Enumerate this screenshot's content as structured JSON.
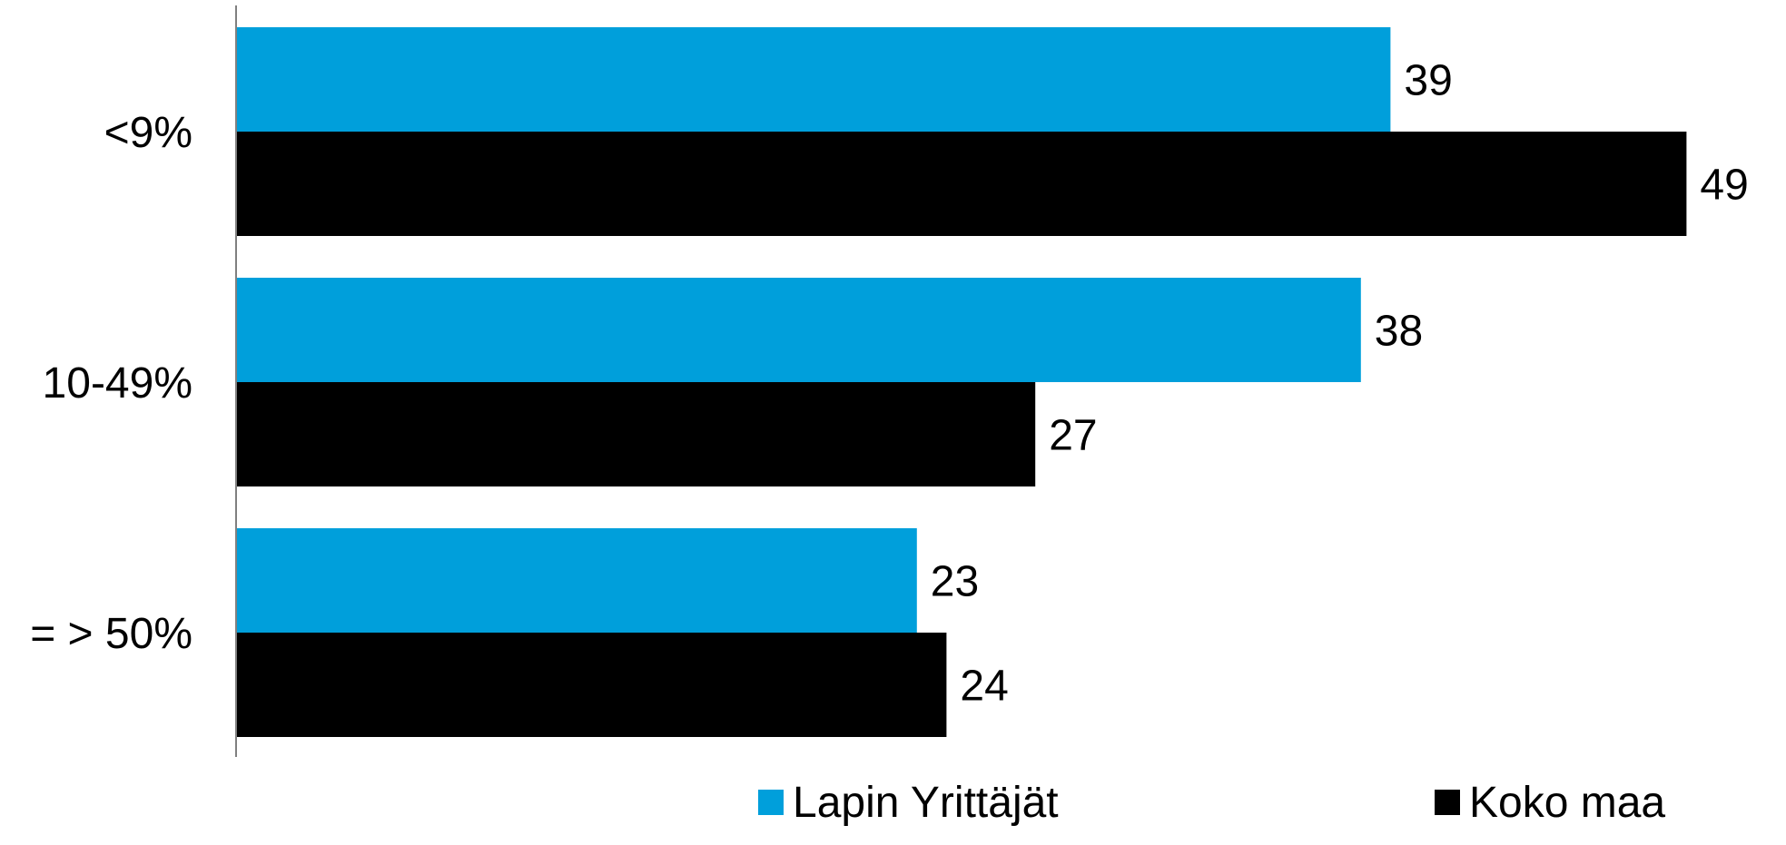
{
  "chart_data": {
    "type": "bar",
    "orientation": "horizontal",
    "categories": [
      "<9%",
      "10-49%",
      "= > 50%"
    ],
    "series": [
      {
        "name": "Lapin Yrittäjät",
        "color": "#009fdb",
        "values": [
          39,
          38,
          23
        ]
      },
      {
        "name": "Koko maa",
        "color": "#000000",
        "values": [
          49,
          27,
          24
        ]
      }
    ],
    "title": "",
    "xlabel": "",
    "ylabel": "",
    "xlim": [
      0,
      50
    ],
    "grid": false,
    "data_labels": true,
    "legend": "bottom"
  }
}
